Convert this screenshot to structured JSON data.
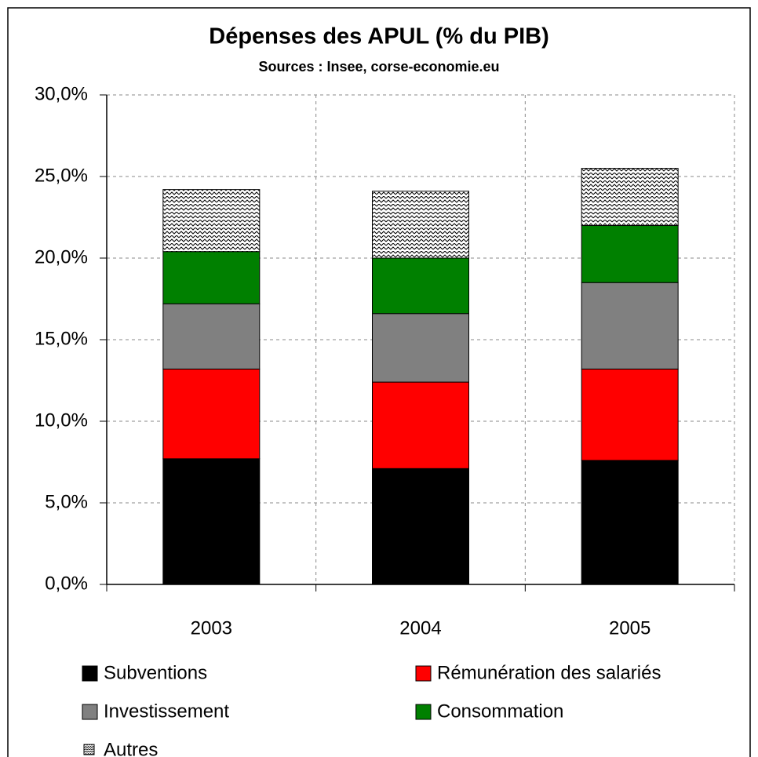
{
  "chart_data": {
    "type": "stacked_bar",
    "title": "Dépenses des APUL (% du PIB)",
    "subtitle": "Sources : Insee, corse-economie.eu",
    "categories": [
      "2003",
      "2004",
      "2005"
    ],
    "series": [
      {
        "name": "Subventions",
        "color": "#000000",
        "values": [
          7.7,
          7.1,
          7.6
        ]
      },
      {
        "name": "Rémunération des salariés",
        "color": "#ff0000",
        "values": [
          5.5,
          5.3,
          5.6
        ]
      },
      {
        "name": "Investissement",
        "color": "#808080",
        "values": [
          4.0,
          4.2,
          5.3
        ]
      },
      {
        "name": "Consommation",
        "color": "#008000",
        "values": [
          3.2,
          3.4,
          3.5
        ]
      },
      {
        "name": "Autres",
        "color": "#ffffff",
        "pattern": "zigzag",
        "values": [
          3.8,
          4.1,
          3.5
        ]
      }
    ],
    "ylim": [
      0,
      30
    ],
    "yticks": [
      {
        "value": 0,
        "label": "0,0%"
      },
      {
        "value": 5,
        "label": "5,0%"
      },
      {
        "value": 10,
        "label": "10,0%"
      },
      {
        "value": 15,
        "label": "15,0%"
      },
      {
        "value": 20,
        "label": "20,0%"
      },
      {
        "value": 25,
        "label": "25,0%"
      },
      {
        "value": 30,
        "label": "30,0%"
      }
    ],
    "grid": true,
    "legend": "bottom"
  }
}
